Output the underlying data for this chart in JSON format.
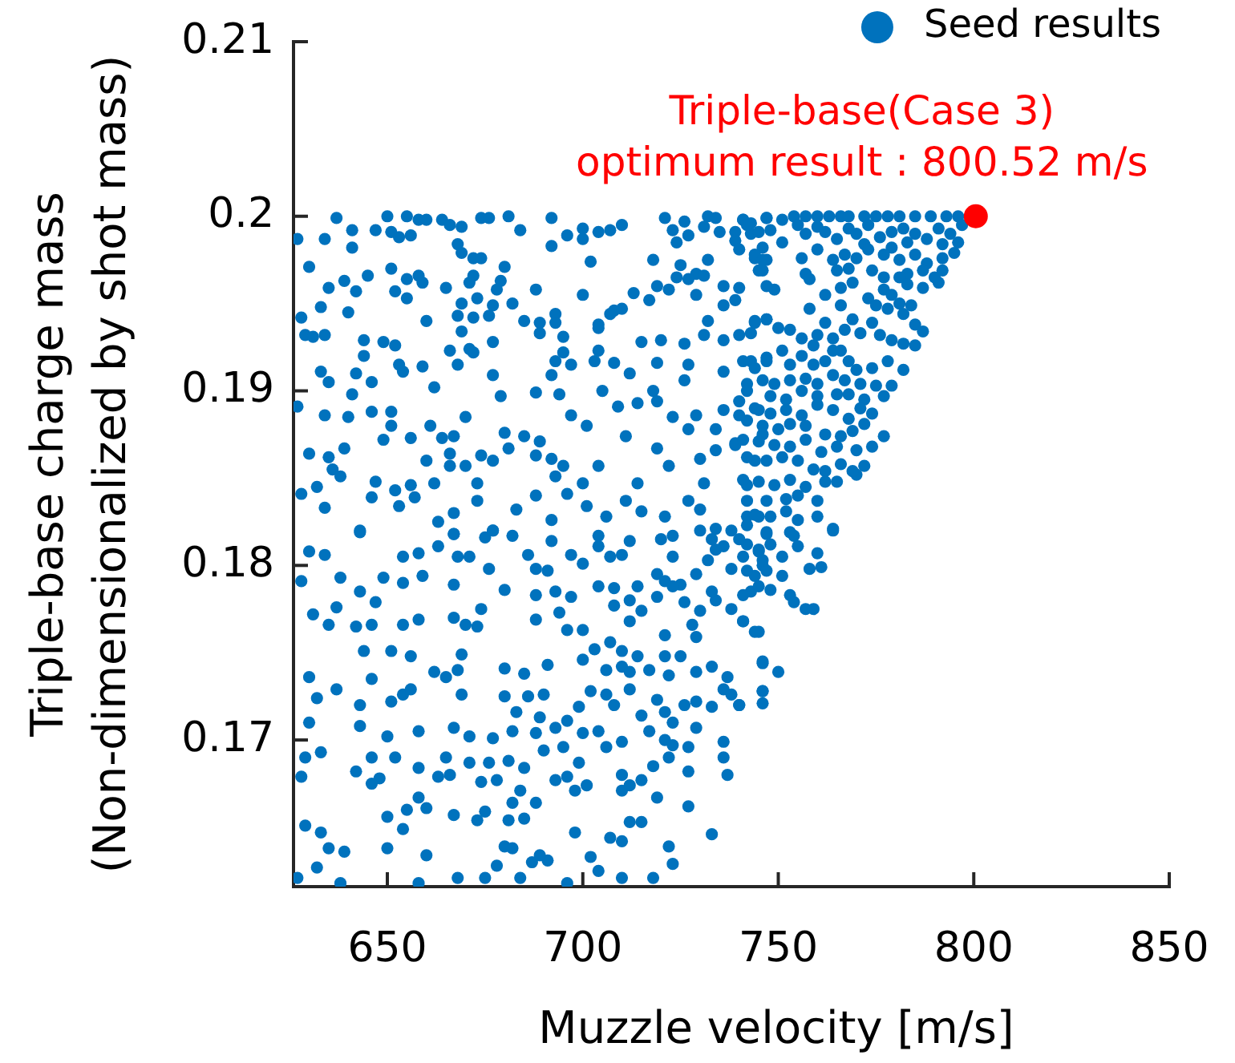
{
  "chart_data": {
    "type": "scatter",
    "xlabel": "Muzzle velocity [m/s]",
    "ylabel": "Triple-base charge mass\n(Non-dimensionalized by shot mass)",
    "xlim": [
      626,
      850
    ],
    "ylim": [
      0.1616,
      0.21
    ],
    "xticks": [
      650,
      700,
      750,
      800,
      850
    ],
    "yticks": [
      0.17,
      0.18,
      0.19,
      0.2,
      0.21
    ],
    "legend": "top right",
    "marker": "circle",
    "annotations": [
      {
        "text": "Triple-base(Case 3)\noptimum result : 800.52 m/s",
        "x": 800.52,
        "y": 0.2
      }
    ],
    "series": [
      {
        "name": "Seed results",
        "color": "#0072bd",
        "x": [
          637,
          650,
          655,
          658,
          660,
          664,
          666,
          669,
          674,
          676,
          681,
          692,
          710,
          721,
          726,
          732,
          734,
          741,
          743,
          747,
          627,
          634,
          641,
          641,
          647,
          651,
          653,
          656,
          684,
          692,
          696,
          700,
          700,
          704,
          707,
          723,
          724,
          727,
          731,
          735,
          739,
          739,
          743,
          746,
          747,
          630,
          668,
          669,
          672,
          674,
          702,
          718,
          725,
          729,
          732,
          744,
          746,
          645,
          651,
          655,
          658,
          659,
          639,
          635,
          642,
          665,
          672,
          671,
          679,
          680,
          678,
          688,
          700,
          708,
          713,
          717,
          719,
          722,
          724,
          727,
          729,
          731,
          736,
          740,
          739,
          747,
          633,
          640,
          652,
          655,
          660,
          669,
          673,
          668,
          672,
          677,
          676,
          682,
          685,
          689,
          693,
          693,
          704,
          707,
          710,
          732,
          736,
          744,
          747,
          628,
          629,
          631,
          634,
          644,
          649,
          652,
          669,
          666,
          671,
          672,
          677,
          689,
          695,
          704,
          704,
          715,
          720,
          726,
          731,
          736,
          743,
          644,
          653,
          654,
          659,
          668,
          633,
          635,
          642,
          646,
          693,
          695,
          697,
          703,
          708,
          712,
          719,
          727,
          736,
          743,
          747,
          677,
          692,
          694,
          688,
          679,
          705,
          718,
          726,
          742,
          641,
          662,
          627,
          634,
          640,
          646,
          651,
          651,
          649,
          656,
          661,
          664,
          667,
          670,
          680,
          685,
          689,
          697,
          701,
          709,
          711,
          714,
          719,
          723,
          727,
          729,
          734,
          736,
          740,
          739,
          745,
          746,
          630,
          635,
          636,
          638,
          639,
          647,
          652,
          656,
          660,
          662,
          666,
          666,
          670,
          674,
          673,
          677,
          681,
          688,
          692,
          695,
          693,
          700,
          704,
          714,
          719,
          722,
          730,
          731,
          734,
          739,
          742,
          744,
          628,
          632,
          634,
          646,
          653,
          657,
          663,
          667,
          673,
          683,
          688,
          692,
          696,
          643,
          667,
          677,
          701,
          706,
          711,
          715,
          721,
          727,
          730,
          734,
          742,
          745,
          741,
          747,
          751,
          754,
          757,
          760,
          763,
          766,
          768,
          772,
          775,
          778,
          781,
          785,
          789,
          793,
          796,
          742,
          745,
          748,
          751,
          755,
          757,
          760,
          762,
          765,
          768,
          770,
          773,
          776,
          779,
          782,
          785,
          788,
          791,
          794,
          797,
          772,
          779,
          783,
          792,
          796,
          744,
          746,
          756,
          760,
          764,
          767,
          770,
          773,
          777,
          781,
          785,
          788,
          792,
          795,
          740,
          757,
          765,
          768,
          774,
          783,
          787,
          792,
          777,
          781,
          745,
          749,
          758,
          762,
          766,
          769,
          773,
          777,
          779,
          783,
          787,
          791,
          790,
          781,
          784,
          775,
          766,
          758,
          762,
          769,
          774,
          778,
          782,
          785,
          787,
          744,
          747,
          750,
          753,
          756,
          760,
          759,
          764,
          767,
          771,
          776,
          779,
          782,
          785,
          766,
          740,
          741,
          744,
          747,
          751,
          753,
          756,
          759,
          762,
          764,
          768,
          770,
          774,
          778,
          782,
          746,
          749,
          753,
          757,
          760,
          764,
          767,
          771,
          775,
          779,
          742,
          748,
          752,
          756,
          760,
          765,
          768,
          772,
          777,
          740,
          744,
          748,
          752,
          756,
          760,
          764,
          768,
          771,
          774,
          742,
          746,
          750,
          753,
          757,
          762,
          766,
          769,
          772,
          777,
          741,
          745,
          749,
          753,
          757,
          761,
          765,
          770,
          774,
          742,
          747,
          751,
          755,
          759,
          762,
          766,
          770,
          772,
          741,
          745,
          749,
          753,
          757,
          762,
          765,
          769,
          742,
          747,
          752,
          755,
          760,
          744,
          748,
          752,
          755,
          760,
          764,
          742,
          747,
          753,
          643,
          667,
          675,
          677,
          682,
          692,
          704,
          712,
          720,
          723,
          730,
          733,
          736,
          738,
          742,
          745,
          630,
          634,
          654,
          658,
          663,
          668,
          671,
          676,
          686,
          688,
          691,
          697,
          700,
          704,
          707,
          710,
          719,
          723,
          725,
          729,
          732,
          734,
          738,
          741,
          744,
          746,
          628,
          638,
          649,
          654,
          659,
          667,
          680,
          688,
          693,
          697,
          704,
          708,
          714,
          721,
          723,
          643,
          647,
          631,
          635,
          637,
          642,
          646,
          654,
          658,
          667,
          670,
          673,
          674,
          688,
          694,
          696,
          700,
          708,
          712,
          715,
          719,
          726,
          730,
          734,
          738,
          741,
          745,
          712,
          721,
          728,
          729,
          733,
          743,
          644,
          651,
          656,
          662,
          665,
          669,
          668,
          680,
          685,
          691,
          700,
          703,
          707,
          710,
          714,
          706,
          710,
          712,
          717,
          721,
          722,
          725,
          729,
          733,
          737,
          740,
          746,
          746,
          630,
          646,
          637,
          632,
          643,
          651,
          654,
          656,
          669,
          680,
          683,
          686,
          690,
          689,
          693,
          696,
          699,
          702,
          706,
          708,
          712,
          715,
          719,
          721,
          723,
          726,
          729,
          733,
          736,
          738,
          630,
          643,
          650,
          658,
          667,
          671,
          677,
          682,
          688,
          700,
          704,
          710,
          717,
          721,
          723,
          729,
          736,
          629,
          633,
          646,
          652,
          648,
          658,
          665,
          663,
          671,
          676,
          674,
          681,
          685,
          690,
          695,
          696,
          699,
          701,
          706,
          710,
          715,
          718,
          722,
          727,
          727,
          736,
          737,
          628,
          642,
          646,
          666,
          678,
          684,
          688,
          693,
          698,
          710,
          712,
          719,
          629,
          633,
          635,
          639,
          632,
          627,
          650,
          655,
          658,
          660,
          654,
          650,
          660,
          667,
          673,
          675,
          682,
          681,
          685,
          680,
          682,
          684,
          678,
          687,
          691,
          689,
          668,
          675,
          698,
          702,
          704,
          710,
          707,
          710,
          712,
          715,
          722,
          723,
          727,
          733,
          718,
          658,
          638,
          696,
          740,
          747,
          754,
          755,
          764,
          745,
          742,
          746,
          748,
          751,
          747,
          751,
          760,
          758,
          761,
          741,
          745,
          748,
          753,
          754,
          757,
          759,
          741,
          744,
          746,
          750,
          746,
          746,
          740
        ],
        "values": [
          0.1999,
          0.2,
          0.2,
          0.1998,
          0.1998,
          0.1998,
          0.1995,
          0.1994,
          0.1999,
          0.1999,
          0.2,
          0.1999,
          0.1995,
          0.1999,
          0.1997,
          0.2,
          0.1999,
          0.1998,
          0.1996,
          0.1999,
          0.1987,
          0.1987,
          0.1982,
          0.1992,
          0.1992,
          0.1991,
          0.1988,
          0.1989,
          0.1992,
          0.1983,
          0.1989,
          0.1993,
          0.1987,
          0.1991,
          0.1992,
          0.1992,
          0.1985,
          0.1989,
          0.1994,
          0.1991,
          0.1991,
          0.1986,
          0.199,
          0.1982,
          0.1975,
          0.1971,
          0.1984,
          0.1979,
          0.1976,
          0.1976,
          0.1974,
          0.1975,
          0.1972,
          0.1967,
          0.1975,
          0.1976,
          0.1969,
          0.1966,
          0.197,
          0.1964,
          0.1966,
          0.1962,
          0.1963,
          0.1959,
          0.1957,
          0.1959,
          0.1966,
          0.1962,
          0.1963,
          0.1971,
          0.1958,
          0.1958,
          0.1955,
          0.1946,
          0.1956,
          0.1952,
          0.196,
          0.1958,
          0.1965,
          0.1964,
          0.1955,
          0.1966,
          0.196,
          0.1959,
          0.1952,
          0.196,
          0.1948,
          0.1945,
          0.1957,
          0.1953,
          0.194,
          0.195,
          0.1953,
          0.1943,
          0.1942,
          0.1949,
          0.1943,
          0.195,
          0.194,
          0.1939,
          0.1944,
          0.1939,
          0.1938,
          0.1944,
          0.1947,
          0.194,
          0.1949,
          0.194,
          0.1941,
          0.1942,
          0.1932,
          0.1931,
          0.1932,
          0.1929,
          0.1928,
          0.1926,
          0.1934,
          0.1923,
          0.1924,
          0.1922,
          0.1928,
          0.1933,
          0.1931,
          0.1936,
          0.1923,
          0.1928,
          0.1929,
          0.1927,
          0.1932,
          0.1929,
          0.1933,
          0.192,
          0.1915,
          0.1911,
          0.1914,
          0.1915,
          0.1911,
          0.1905,
          0.191,
          0.1905,
          0.1917,
          0.1922,
          0.1915,
          0.1917,
          0.1916,
          0.191,
          0.1916,
          0.1915,
          0.1911,
          0.1917,
          0.1919,
          0.1909,
          0.1909,
          0.1898,
          0.1899,
          0.1897,
          0.19,
          0.19,
          0.1906,
          0.1904,
          0.1898,
          0.1902,
          0.1891,
          0.1886,
          0.1885,
          0.1888,
          0.1888,
          0.188,
          0.1872,
          0.1873,
          0.188,
          0.1873,
          0.1874,
          0.1885,
          0.1876,
          0.1874,
          0.1871,
          0.1886,
          0.188,
          0.1891,
          0.1874,
          0.1893,
          0.1894,
          0.1885,
          0.1878,
          0.1886,
          0.1878,
          0.1889,
          0.1886,
          0.187,
          0.1889,
          0.1875,
          0.1864,
          0.1862,
          0.1855,
          0.1851,
          0.1867,
          0.1848,
          0.1843,
          0.1846,
          0.186,
          0.1847,
          0.1864,
          0.1857,
          0.1857,
          0.1863,
          0.1847,
          0.186,
          0.1867,
          0.1863,
          0.1861,
          0.1857,
          0.1851,
          0.1847,
          0.1857,
          0.1847,
          0.1867,
          0.1857,
          0.1861,
          0.1847,
          0.1866,
          0.1869,
          0.1846,
          0.186,
          0.1841,
          0.1845,
          0.1833,
          0.1839,
          0.1834,
          0.1839,
          0.1825,
          0.183,
          0.1837,
          0.1832,
          0.184,
          0.1826,
          0.1841,
          0.1819,
          0.1818,
          0.182,
          0.1834,
          0.1828,
          0.1837,
          0.1831,
          0.1828,
          0.1837,
          0.1832,
          0.1821,
          0.1828,
          0.1828,
          0.1998,
          0.1999,
          0.1998,
          0.2,
          0.2,
          0.2,
          0.2,
          0.2,
          0.2,
          0.2,
          0.2,
          0.2,
          0.2,
          0.2,
          0.2,
          0.2,
          0.2,
          0.1995,
          0.1991,
          0.1992,
          0.1985,
          0.1995,
          0.199,
          0.1994,
          0.1991,
          0.1987,
          0.1993,
          0.199,
          0.1995,
          0.1988,
          0.1991,
          0.1993,
          0.199,
          0.1987,
          0.1993,
          0.199,
          0.1995,
          0.1984,
          0.1982,
          0.1985,
          0.1984,
          0.1985,
          0.1978,
          0.1975,
          0.1976,
          0.1981,
          0.1975,
          0.1978,
          0.1976,
          0.1981,
          0.1978,
          0.1975,
          0.1978,
          0.1973,
          0.1976,
          0.1979,
          0.1981,
          0.1967,
          0.1969,
          0.197,
          0.1969,
          0.1967,
          0.1969,
          0.1969,
          0.1965,
          0.1965,
          0.1969,
          0.1958,
          0.1964,
          0.1955,
          0.1959,
          0.1962,
          0.1953,
          0.1958,
          0.1955,
          0.1961,
          0.1959,
          0.1962,
          0.1965,
          0.195,
          0.1949,
          0.1949,
          0.1949,
          0.1947,
          0.1939,
          0.1941,
          0.1939,
          0.1947,
          0.1944,
          0.1938,
          0.1934,
          0.1939,
          0.1941,
          0.1936,
          0.1935,
          0.193,
          0.1932,
          0.1926,
          0.193,
          0.1935,
          0.1933,
          0.1932,
          0.1929,
          0.1927,
          0.1926,
          0.1923,
          0.1932,
          0.1917,
          0.1913,
          0.1917,
          0.1923,
          0.1915,
          0.192,
          0.1915,
          0.1917,
          0.1923,
          0.1917,
          0.1912,
          0.1913,
          0.1917,
          0.1912,
          0.1906,
          0.1904,
          0.1906,
          0.1907,
          0.1904,
          0.1909,
          0.1906,
          0.1904,
          0.1903,
          0.1903,
          0.19,
          0.1897,
          0.1895,
          0.19,
          0.1897,
          0.1898,
          0.1898,
          0.1895,
          0.1897,
          0.1894,
          0.189,
          0.1887,
          0.1889,
          0.1886,
          0.1892,
          0.1889,
          0.1884,
          0.189,
          0.1887,
          0.1883,
          0.188,
          0.1878,
          0.1881,
          0.188,
          0.1875,
          0.1874,
          0.1877,
          0.1881,
          0.1874,
          0.1872,
          0.1871,
          0.1869,
          0.1868,
          0.1872,
          0.1865,
          0.1868,
          0.1866,
          0.1868,
          0.1862,
          0.186,
          0.1862,
          0.186,
          0.1855,
          0.1854,
          0.1858,
          0.1852,
          0.1857,
          0.1849,
          0.1848,
          0.1846,
          0.1849,
          0.1845,
          0.1848,
          0.1848,
          0.1854,
          0.1837,
          0.1837,
          0.1838,
          0.184,
          0.1837,
          0.1829,
          0.1828,
          0.1831,
          0.1826,
          0.1828,
          0.1821,
          0.1823,
          0.1819,
          0.1819,
          0.182,
          0.1818,
          0.1816,
          0.182,
          0.1817,
          0.1814,
          0.1817,
          0.1814,
          0.1815,
          0.1817,
          0.182,
          0.1815,
          0.1811,
          0.182,
          0.1812,
          0.1809,
          0.1808,
          0.1806,
          0.1805,
          0.1807,
          0.1811,
          0.1805,
          0.1805,
          0.1798,
          0.1806,
          0.1798,
          0.1797,
          0.1806,
          0.1801,
          0.1811,
          0.1805,
          0.1806,
          0.1795,
          0.1805,
          0.1789,
          0.1795,
          0.1803,
          0.1809,
          0.1798,
          0.1805,
          0.1794,
          0.18,
          0.1791,
          0.1793,
          0.1793,
          0.179,
          0.1794,
          0.1789,
          0.1786,
          0.1783,
          0.1785,
          0.1782,
          0.1788,
          0.1787,
          0.1788,
          0.1791,
          0.1788,
          0.1785,
          0.1779,
          0.1772,
          0.1766,
          0.1776,
          0.1765,
          0.1766,
          0.1766,
          0.1769,
          0.177,
          0.1766,
          0.1765,
          0.1775,
          0.1769,
          0.1773,
          0.1763,
          0.1763,
          0.1777,
          0.178,
          0.1774,
          0.1782,
          0.1779,
          0.1774,
          0.178,
          0.1775,
          0.1768,
          0.1762,
          0.1768,
          0.176,
          0.1766,
          0.1759,
          0.1785,
          0.1785,
          0.1751,
          0.1751,
          0.1748,
          0.1739,
          0.1736,
          0.1749,
          0.174,
          0.1741,
          0.1738,
          0.1743,
          0.1746,
          0.1752,
          0.1756,
          0.1751,
          0.1748,
          0.174,
          0.1742,
          0.1739,
          0.174,
          0.1748,
          0.1737,
          0.1748,
          0.1739,
          0.1742,
          0.1736,
          0.172,
          0.1744,
          0.1728,
          0.1736,
          0.1735,
          0.1729,
          0.1724,
          0.172,
          0.1722,
          0.1726,
          0.1729,
          0.1726,
          0.1725,
          0.1716,
          0.1725,
          0.1726,
          0.1713,
          0.1707,
          0.1711,
          0.1719,
          0.1728,
          0.1726,
          0.172,
          0.1729,
          0.1714,
          0.1723,
          0.1716,
          0.171,
          0.172,
          0.1722,
          0.1719,
          0.1729,
          0.1726,
          0.171,
          0.1708,
          0.1702,
          0.1705,
          0.1707,
          0.1702,
          0.1701,
          0.1705,
          0.1704,
          0.1704,
          0.1705,
          0.1699,
          0.1705,
          0.17,
          0.1697,
          0.1707,
          0.1699,
          0.169,
          0.1693,
          0.169,
          0.169,
          0.1678,
          0.1684,
          0.169,
          0.1679,
          0.1687,
          0.1687,
          0.1676,
          0.1688,
          0.1684,
          0.1694,
          0.1696,
          0.1679,
          0.1687,
          0.1674,
          0.1696,
          0.168,
          0.1677,
          0.1685,
          0.169,
          0.1696,
          0.1682,
          0.169,
          0.168,
          0.1679,
          0.1682,
          0.1675,
          0.168,
          0.1677,
          0.1671,
          0.1664,
          0.1677,
          0.1671,
          0.1671,
          0.1674,
          0.1667,
          0.1651,
          0.1647,
          0.1638,
          0.1636,
          0.1627,
          0.1621,
          0.1656,
          0.166,
          0.1667,
          0.1661,
          0.1649,
          0.1638,
          0.1634,
          0.1657,
          0.1654,
          0.1659,
          0.1664,
          0.1654,
          0.1655,
          0.1639,
          0.1638,
          0.1621,
          0.1628,
          0.163,
          0.1631,
          0.1634,
          0.1621,
          0.1621,
          0.1647,
          0.1633,
          0.1625,
          0.1621,
          0.1644,
          0.1642,
          0.1653,
          0.1653,
          0.1639,
          0.1629,
          0.1662,
          0.1646,
          0.1621,
          0.1618,
          0.1618,
          0.1618,
          0.1815,
          0.1818,
          0.1817,
          0.1811,
          0.182,
          0.1808,
          0.1797,
          0.1803,
          0.1812,
          0.1805,
          0.1797,
          0.1794,
          0.1807,
          0.1798,
          0.1799,
          0.1783,
          0.1788,
          0.1786,
          0.1783,
          0.1779,
          0.1775,
          0.1775,
          0.1768,
          0.1762,
          0.1745,
          0.1739,
          0.1728,
          0.1721,
          0.172
        ]
      },
      {
        "color": "#ff0000",
        "x": [
          800.52
        ],
        "values": [
          0.2
        ]
      }
    ]
  }
}
